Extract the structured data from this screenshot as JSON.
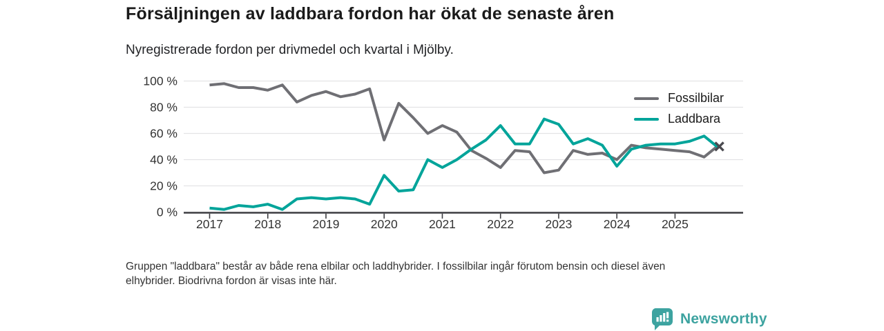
{
  "title": "Försäljningen av laddbara fordon har ökat de senaste åren",
  "subtitle": "Nyregistrerade fordon per drivmedel och kvartal i Mjölby.",
  "note_lines": [
    "Gruppen \"laddbara\" består av både rena elbilar och laddhybrider. I fossilbilar ingår förutom bensin och diesel även",
    "elhybrider. Biodrivna fordon är visas inte här."
  ],
  "branding": {
    "logo_text": "Newsworthy",
    "logo_icon": "bar-chart-speech-bubble-icon",
    "brand_color": "#3da3a0"
  },
  "chart_data": {
    "type": "line",
    "title": "Försäljningen av laddbara fordon har ökat de senaste åren",
    "subtitle": "Nyregistrerade fordon per drivmedel och kvartal i Mjölby.",
    "unit": "%",
    "x": [
      "2017K1",
      "2017K2",
      "2017K3",
      "2017K4",
      "2018K1",
      "2018K2",
      "2018K3",
      "2018K4",
      "2019K1",
      "2019K2",
      "2019K3",
      "2019K4",
      "2020K1",
      "2020K2",
      "2020K3",
      "2020K4",
      "2021K1",
      "2021K2",
      "2021K3",
      "2021K4",
      "2022K1",
      "2022K2",
      "2022K3",
      "2022K4",
      "2023K1",
      "2023K2",
      "2023K3",
      "2023K4",
      "2024K1",
      "2024K2",
      "2024K3",
      "2024K4",
      "2025K1",
      "2025K2",
      "2025K3",
      "2025K4"
    ],
    "series": [
      {
        "name": "Fossilbilar",
        "color": "#6f6f74",
        "values": [
          97,
          98,
          95,
          95,
          93,
          97,
          84,
          89,
          92,
          88,
          90,
          94,
          55,
          83,
          72,
          60,
          66,
          61,
          47,
          41,
          34,
          47,
          46,
          30,
          32,
          47,
          44,
          45,
          40,
          51,
          49,
          48,
          47,
          46,
          42,
          51
        ]
      },
      {
        "name": "Laddbara",
        "color": "#00a49a",
        "values": [
          3,
          2,
          5,
          4,
          6,
          2,
          10,
          11,
          10,
          11,
          10,
          6,
          28,
          16,
          17,
          40,
          34,
          40,
          48,
          55,
          66,
          52,
          52,
          71,
          67,
          52,
          56,
          51,
          35,
          48,
          51,
          52,
          52,
          54,
          58,
          49
        ]
      }
    ],
    "ylim": [
      0,
      100
    ],
    "yticks": [
      0,
      20,
      40,
      60,
      80,
      100
    ],
    "ytick_suffix": " %",
    "xticks": [
      "2017",
      "2018",
      "2019",
      "2020",
      "2021",
      "2022",
      "2023",
      "2024",
      "2025"
    ],
    "grid": "horizontal",
    "legend_position": "top-right",
    "end_marker": "×",
    "end_marker_color": "#4a4a50",
    "axis_color": "#3c3c40",
    "grid_color": "#e3e3e5",
    "tick_label_color": "#333333"
  }
}
